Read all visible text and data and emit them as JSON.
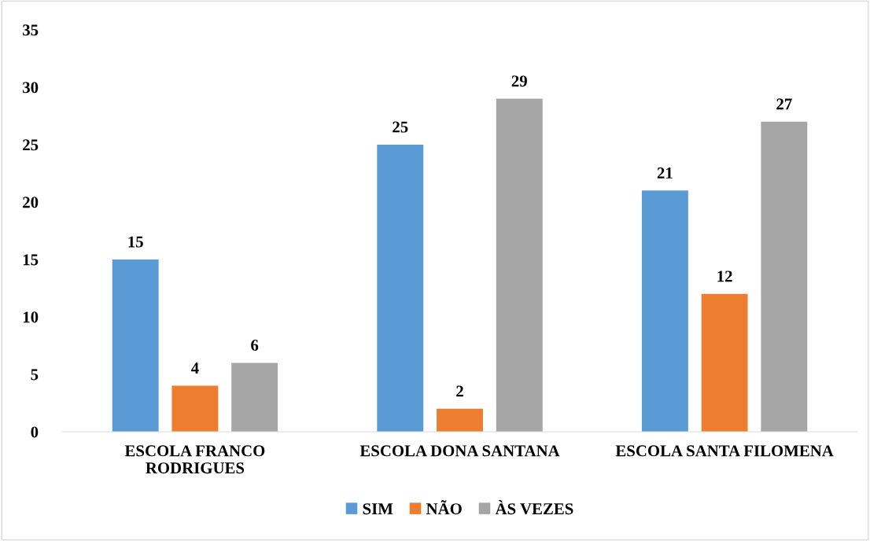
{
  "chart_data": {
    "type": "bar",
    "categories": [
      "ESCOLA FRANCO\nRODRIGUES",
      "ESCOLA DONA SANTANA",
      "ESCOLA SANTA FILOMENA"
    ],
    "series": [
      {
        "name": "SIM",
        "color": "#5b9bd5",
        "values": [
          15,
          25,
          21
        ]
      },
      {
        "name": "NÃO",
        "color": "#ed7d31",
        "values": [
          4,
          2,
          12
        ]
      },
      {
        "name": "ÀS VEZES",
        "color": "#a5a5a5",
        "values": [
          6,
          29,
          27
        ]
      }
    ],
    "ylim": [
      0,
      35
    ],
    "yticks": [
      0,
      5,
      10,
      15,
      20,
      25,
      30,
      35
    ],
    "grid": false,
    "legend": "bottom",
    "data_labels": true
  }
}
